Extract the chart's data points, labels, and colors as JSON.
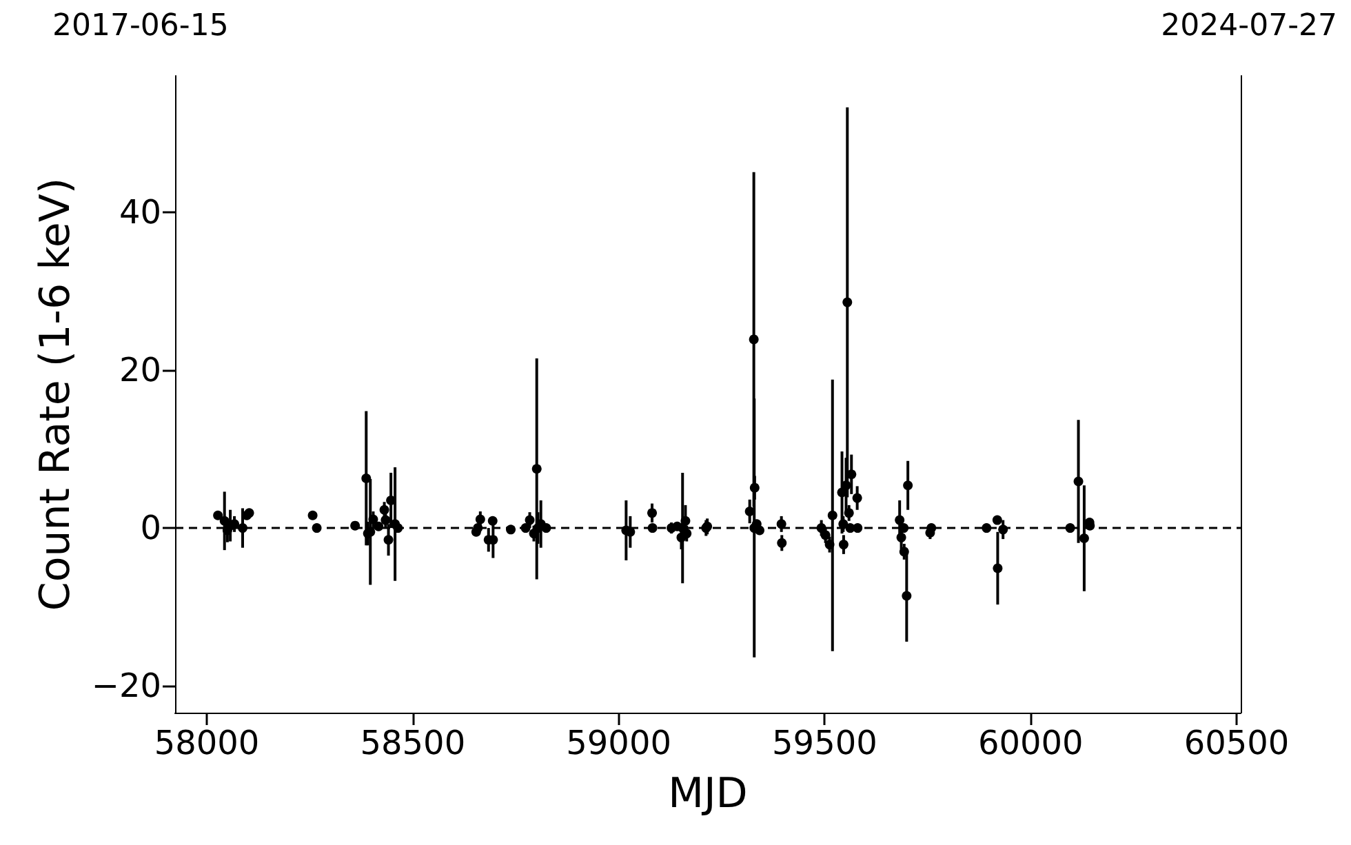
{
  "chart_data": {
    "type": "scatter",
    "xlabel": "MJD",
    "ylabel": "Count Rate (1-6 keV)",
    "xlim": [
      57923,
      60510
    ],
    "xticks": [
      58000,
      58500,
      59000,
      59500,
      60000,
      60500
    ],
    "ylim": [
      -23.4,
      57.3
    ],
    "yticks": [
      {
        "value": -20,
        "label": "−20"
      },
      0,
      20,
      40
    ],
    "annotations": [
      "2017-06-15",
      "2024-07-27"
    ],
    "grid": false,
    "marker": "circle",
    "ref_lines": [
      {
        "axis": "y",
        "value": 0,
        "line_style": "dashed",
        "color": "#000000"
      }
    ],
    "series": [
      {
        "color": "#000000",
        "x": [
          58027,
          58043,
          58050,
          58057,
          58067,
          58087,
          58097,
          58103,
          58257,
          58267,
          58360,
          58387,
          58391,
          58397,
          58404,
          58417,
          58431,
          58434,
          58441,
          58447,
          58457,
          58464,
          58654,
          58658,
          58664,
          58684,
          58694,
          58695,
          58738,
          58774,
          58784,
          58794,
          58801,
          58804,
          58811,
          58824,
          59018,
          59028,
          59081,
          59082,
          59128,
          59142,
          59152,
          59155,
          59162,
          59165,
          59212,
          59215,
          59318,
          59328,
          59329,
          59330,
          59335,
          59342,
          59395,
          59396,
          59492,
          59502,
          59512,
          59519,
          59542,
          59545,
          59546,
          59552,
          59555,
          59559,
          59562,
          59565,
          59579,
          59580,
          59682,
          59686,
          59692,
          59693,
          59699,
          59702,
          59756,
          59759,
          59893,
          59919,
          59920,
          59933,
          60096,
          60116,
          60130,
          60143,
          60144
        ],
        "values": [
          1.6,
          0.9,
          -0.3,
          0.3,
          0.5,
          0,
          1.6,
          1.9,
          1.6,
          0,
          0.3,
          6.3,
          -0.7,
          -0.5,
          1.1,
          0.2,
          2.3,
          1.0,
          -1.5,
          3.5,
          0.5,
          0,
          -0.5,
          0,
          1.1,
          -1.5,
          0.9,
          -1.5,
          -0.2,
          0,
          1.0,
          -0.7,
          7.5,
          0,
          0.5,
          0,
          -0.3,
          -0.5,
          1.9,
          0,
          0,
          0.2,
          -1.2,
          0,
          0.9,
          -0.7,
          0,
          0.2,
          2.1,
          23.9,
          0,
          5.1,
          0.5,
          -0.3,
          0.5,
          -1.9,
          0,
          -0.9,
          -2.1,
          1.6,
          4.5,
          0.5,
          -2.1,
          5.4,
          28.6,
          1.9,
          0,
          6.8,
          3.8,
          0,
          1.0,
          -1.2,
          0,
          -3.0,
          -8.6,
          5.4,
          -0.6,
          0,
          0,
          1.0,
          -5.1,
          -0.2,
          0,
          5.9,
          -1.3,
          0.7,
          0.3
        ],
        "errors": [
          0.5,
          3.7,
          1.5,
          2,
          1,
          2.5,
          0.5,
          0.5,
          0.3,
          0.3,
          0.5,
          8.5,
          1.5,
          6.7,
          1,
          0.5,
          1,
          1,
          2,
          3.5,
          7.2,
          0.5,
          0.5,
          0.5,
          1,
          1.5,
          0.5,
          2.3,
          0.5,
          0.5,
          1,
          1,
          14,
          2,
          3,
          0.5,
          3.8,
          2,
          1.2,
          0.5,
          0.7,
          0.5,
          1.5,
          7,
          2,
          1,
          1,
          1,
          1.5,
          21.2,
          16.4,
          1.5,
          0.5,
          0.5,
          1,
          1,
          1,
          1,
          1,
          17.2,
          5.2,
          1,
          1.2,
          3.5,
          24.7,
          1,
          0.5,
          2.5,
          1.5,
          0.5,
          2.5,
          1.5,
          0.5,
          1,
          5.8,
          3.1,
          0.8,
          0.5,
          0.3,
          0.3,
          4.6,
          1.2,
          0.3,
          7.8,
          6.7,
          0.3,
          0.3
        ]
      }
    ]
  }
}
